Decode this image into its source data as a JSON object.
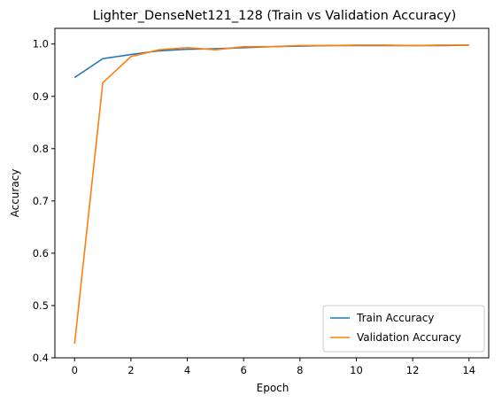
{
  "chart_data": {
    "type": "line",
    "title": "Lighter_DenseNet121_128 (Train vs Validation Accuracy)",
    "xlabel": "Epoch",
    "ylabel": "Accuracy",
    "xlim": [
      -0.7,
      14.7
    ],
    "ylim": [
      0.4,
      1.03
    ],
    "xticks": [
      0,
      2,
      4,
      6,
      8,
      10,
      12,
      14
    ],
    "yticks": [
      0.4,
      0.5,
      0.6,
      0.7,
      0.8,
      0.9,
      1.0
    ],
    "ytick_labels": [
      "0.4",
      "0.5",
      "0.6",
      "0.7",
      "0.8",
      "0.9",
      "1.0"
    ],
    "grid": false,
    "legend_position": "lower-right",
    "x": [
      0,
      1,
      2,
      3,
      4,
      5,
      6,
      7,
      8,
      9,
      10,
      11,
      12,
      13,
      14
    ],
    "series": [
      {
        "name": "Train Accuracy",
        "color": "#1f77b4",
        "values": [
          0.936,
          0.972,
          0.98,
          0.987,
          0.99,
          0.991,
          0.993,
          0.995,
          0.996,
          0.997,
          0.997,
          0.997,
          0.997,
          0.997,
          0.998
        ]
      },
      {
        "name": "Validation Accuracy",
        "color": "#ff7f0e",
        "values": [
          0.427,
          0.926,
          0.976,
          0.989,
          0.993,
          0.989,
          0.995,
          0.995,
          0.997,
          0.997,
          0.998,
          0.998,
          0.997,
          0.998,
          0.998
        ]
      }
    ]
  }
}
